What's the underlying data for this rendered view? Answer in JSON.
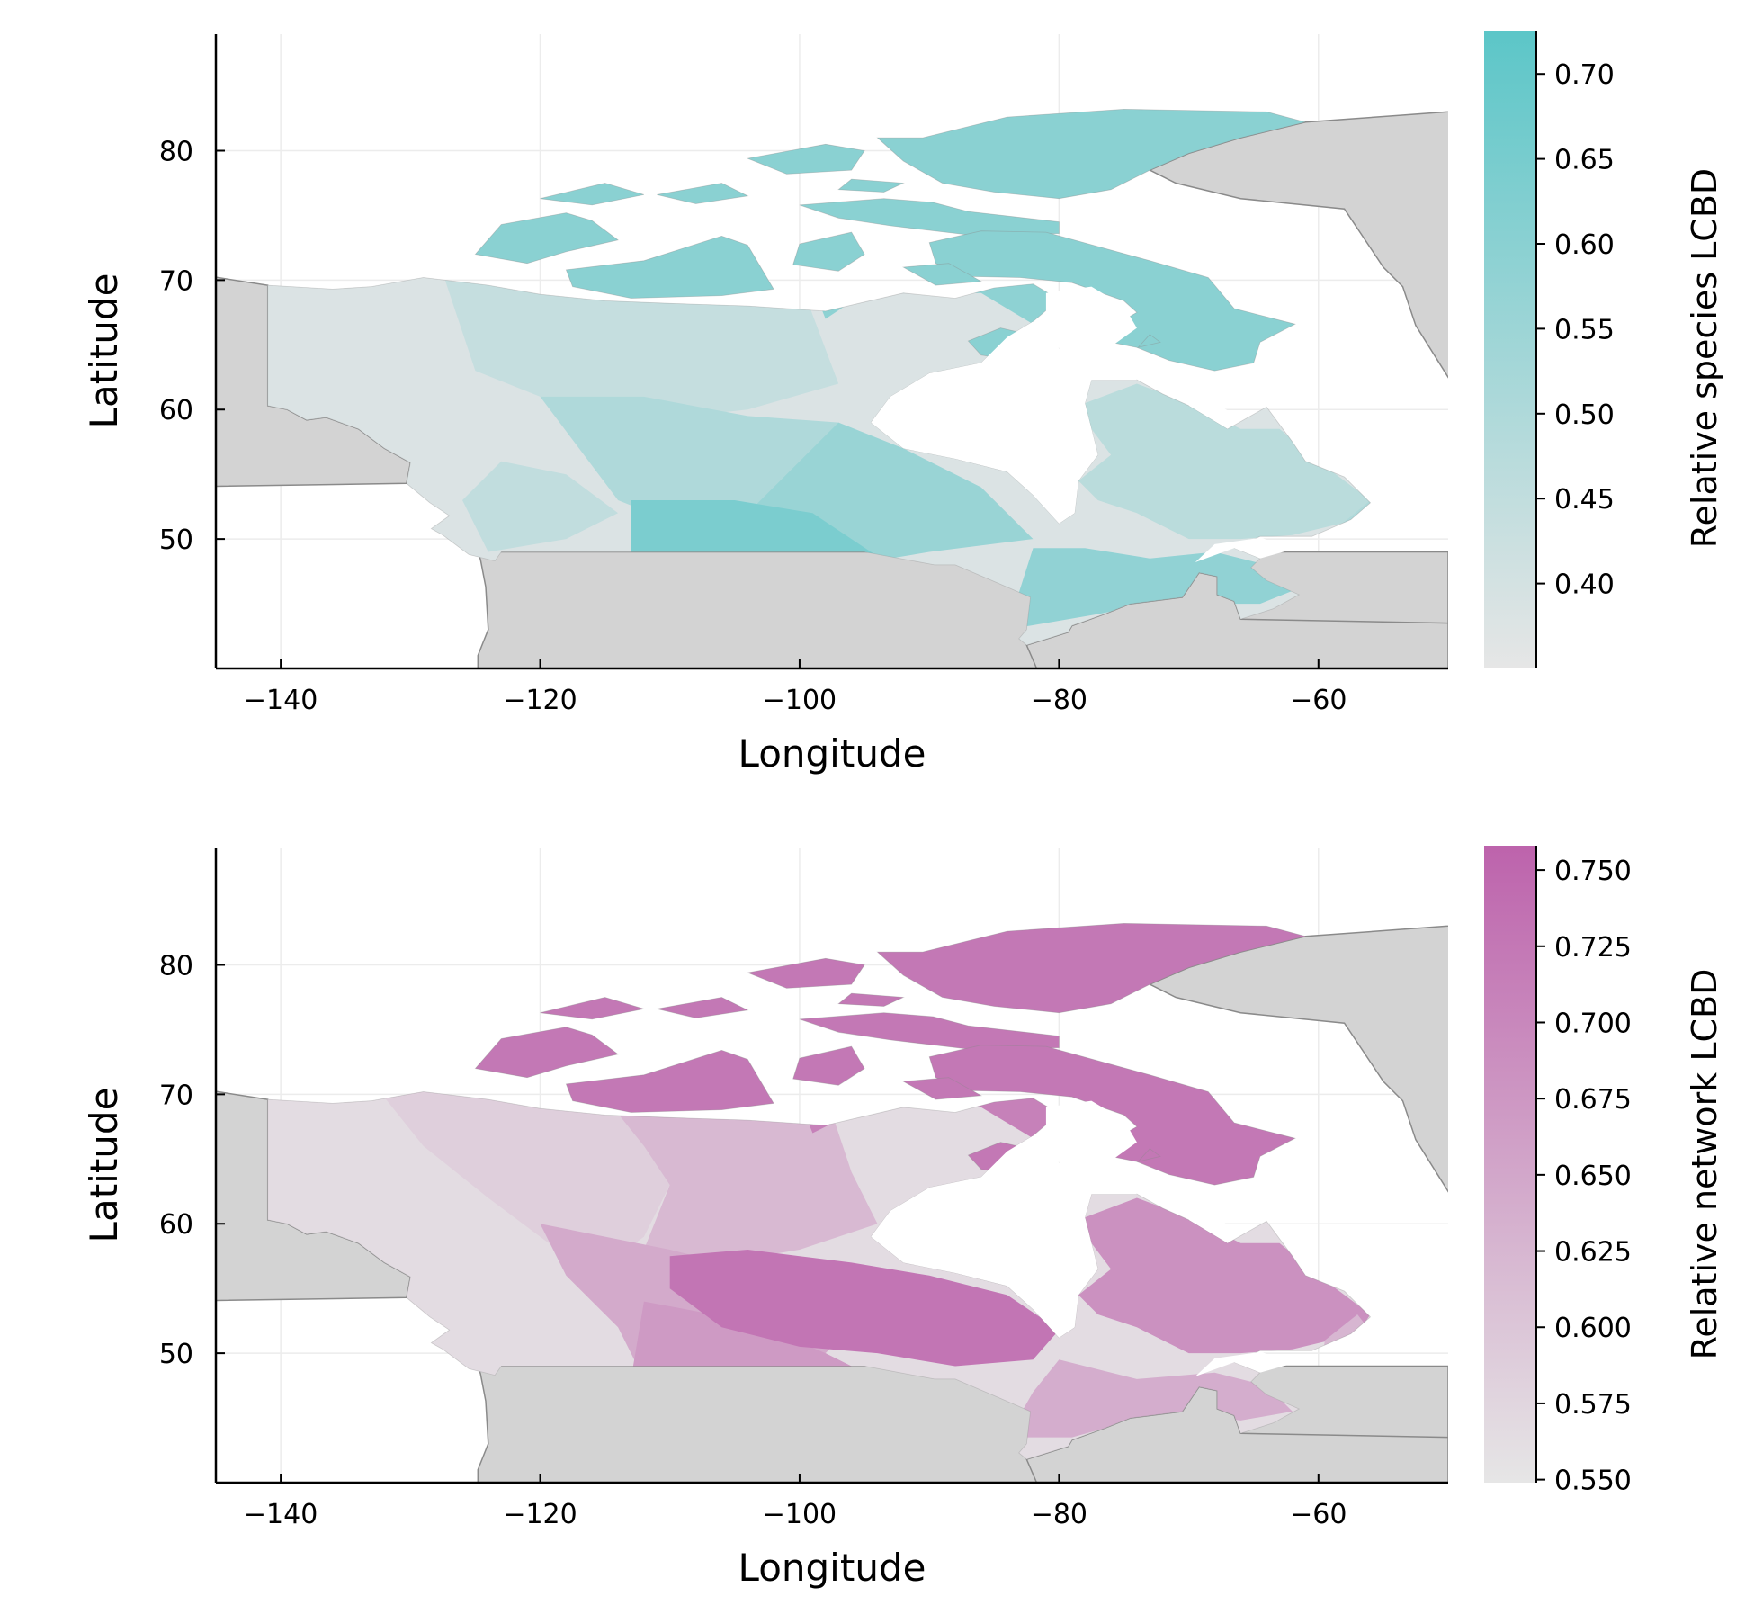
{
  "chart_data": [
    {
      "type": "heatmap",
      "xlabel": "Longitude",
      "ylabel": "Latitude",
      "xlim": [
        -145,
        -50
      ],
      "ylim": [
        40,
        89
      ],
      "xticks": [
        -140,
        -120,
        -100,
        -80,
        -60
      ],
      "xtick_labels": [
        "−140",
        "−120",
        "−100",
        "−80",
        "−60"
      ],
      "yticks": [
        50,
        60,
        70,
        80
      ],
      "ytick_labels": [
        "50",
        "60",
        "70",
        "80"
      ],
      "grid": true,
      "colorbar": {
        "label": "Relative species LCBD",
        "range": [
          0.35,
          0.725
        ],
        "ticks": [
          0.4,
          0.45,
          0.5,
          0.55,
          0.6,
          0.65,
          0.7
        ],
        "tick_labels": [
          "0.40",
          "0.45",
          "0.50",
          "0.55",
          "0.60",
          "0.65",
          "0.70"
        ],
        "color_low": "#e6e6e6",
        "color_high": "#5cc6c8"
      }
    },
    {
      "type": "heatmap",
      "xlabel": "Longitude",
      "ylabel": "Latitude",
      "xlim": [
        -145,
        -50
      ],
      "ylim": [
        40,
        89
      ],
      "xticks": [
        -140,
        -120,
        -100,
        -80,
        -60
      ],
      "xtick_labels": [
        "−140",
        "−120",
        "−100",
        "−80",
        "−60"
      ],
      "yticks": [
        50,
        60,
        70,
        80
      ],
      "ytick_labels": [
        "50",
        "60",
        "70",
        "80"
      ],
      "grid": true,
      "colorbar": {
        "label": "Relative network LCBD",
        "range": [
          0.549,
          0.758
        ],
        "ticks": [
          0.55,
          0.575,
          0.6,
          0.625,
          0.65,
          0.675,
          0.7,
          0.725,
          0.75
        ],
        "tick_labels": [
          "0.550",
          "0.575",
          "0.600",
          "0.625",
          "0.650",
          "0.675",
          "0.700",
          "0.725",
          "0.750"
        ],
        "color_low": "#e6e6e6",
        "color_high": "#bd63ac"
      }
    }
  ],
  "colors": {
    "land_background": "#d3d3d3",
    "coastline": "#8a8a8a",
    "grid": "#ececec"
  }
}
